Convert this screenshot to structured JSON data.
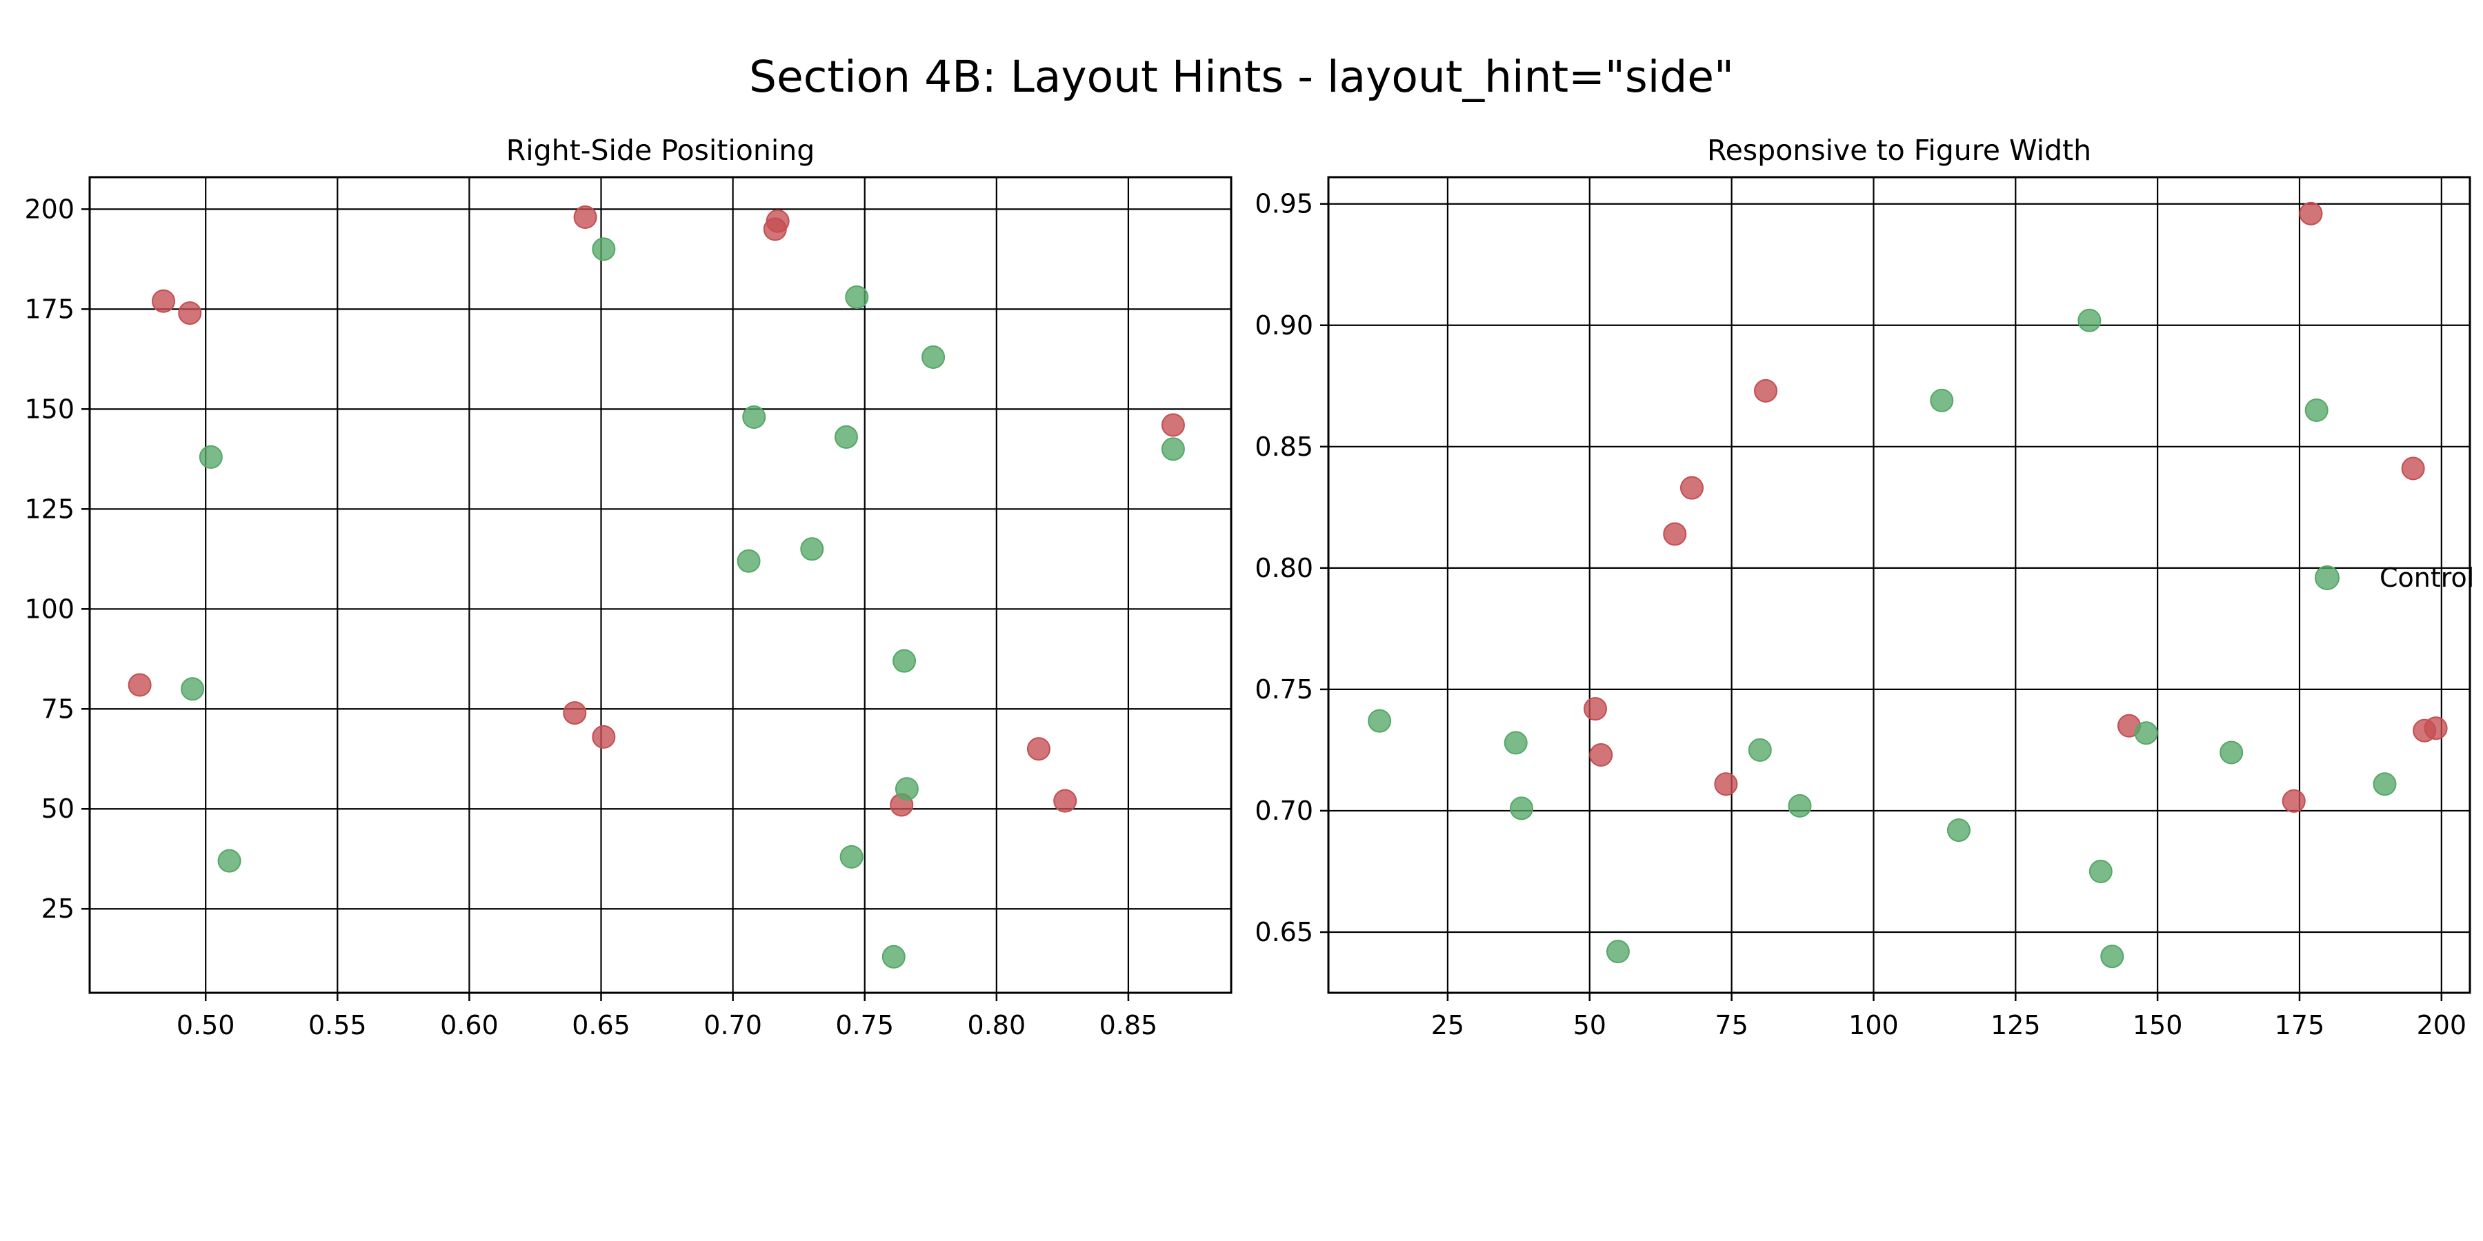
{
  "figure_title": "Section 4B: Layout Hints - layout_hint=\"side\"",
  "colors": {
    "red": "#c44e52",
    "green": "#55a868",
    "grid": "#000000",
    "axis": "#000000"
  },
  "chart_data": [
    {
      "type": "scatter",
      "title": "Right-Side Positioning",
      "xlabel": "",
      "ylabel": "",
      "xlim": [
        0.456,
        0.889
      ],
      "ylim": [
        4,
        208
      ],
      "xticks": [
        0.5,
        0.55,
        0.6,
        0.65,
        0.7,
        0.75,
        0.8,
        0.85
      ],
      "xtick_labels": [
        "0.50",
        "0.55",
        "0.60",
        "0.65",
        "0.70",
        "0.75",
        "0.80",
        "0.85"
      ],
      "yticks": [
        25,
        50,
        75,
        100,
        125,
        150,
        175,
        200
      ],
      "ytick_labels": [
        "25",
        "50",
        "75",
        "100",
        "125",
        "150",
        "175",
        "200"
      ],
      "grid": true,
      "legend": null,
      "series": [
        {
          "color": "red",
          "points": [
            [
              0.475,
              81
            ],
            [
              0.484,
              177
            ],
            [
              0.494,
              174
            ],
            [
              0.644,
              198
            ],
            [
              0.64,
              74
            ],
            [
              0.651,
              68
            ],
            [
              0.716,
              195
            ],
            [
              0.717,
              197
            ],
            [
              0.764,
              51
            ],
            [
              0.816,
              65
            ],
            [
              0.826,
              52
            ],
            [
              0.867,
              146
            ]
          ]
        },
        {
          "color": "green",
          "points": [
            [
              0.495,
              80
            ],
            [
              0.502,
              138
            ],
            [
              0.509,
              37
            ],
            [
              0.651,
              190
            ],
            [
              0.706,
              112
            ],
            [
              0.708,
              148
            ],
            [
              0.73,
              115
            ],
            [
              0.743,
              143
            ],
            [
              0.745,
              38
            ],
            [
              0.747,
              178
            ],
            [
              0.761,
              13
            ],
            [
              0.765,
              87
            ],
            [
              0.766,
              55
            ],
            [
              0.776,
              163
            ],
            [
              0.867,
              140
            ]
          ]
        }
      ]
    },
    {
      "type": "scatter",
      "title": "Responsive to Figure Width",
      "xlabel": "",
      "ylabel": "",
      "xlim": [
        4,
        205
      ],
      "ylim": [
        0.625,
        0.961
      ],
      "xticks": [
        25,
        50,
        75,
        100,
        125,
        150,
        175,
        200
      ],
      "xtick_labels": [
        "25",
        "50",
        "75",
        "100",
        "125",
        "150",
        "175",
        "200"
      ],
      "yticks": [
        0.65,
        0.7,
        0.75,
        0.8,
        0.85,
        0.9,
        0.95
      ],
      "ytick_labels": [
        "0.65",
        "0.70",
        "0.75",
        "0.80",
        "0.85",
        "0.90",
        "0.95"
      ],
      "grid": true,
      "legend": {
        "placement": "right",
        "entries": [
          {
            "label": "Control",
            "color": "green"
          }
        ]
      },
      "series": [
        {
          "color": "red",
          "points": [
            [
              51,
              0.742
            ],
            [
              52,
              0.723
            ],
            [
              65,
              0.814
            ],
            [
              68,
              0.833
            ],
            [
              74,
              0.711
            ],
            [
              81,
              0.873
            ],
            [
              145,
              0.735
            ],
            [
              174,
              0.704
            ],
            [
              177,
              0.946
            ],
            [
              195,
              0.841
            ],
            [
              197,
              0.733
            ],
            [
              199,
              0.734
            ]
          ]
        },
        {
          "color": "green",
          "points": [
            [
              13,
              0.737
            ],
            [
              37,
              0.728
            ],
            [
              38,
              0.701
            ],
            [
              55,
              0.642
            ],
            [
              80,
              0.725
            ],
            [
              87,
              0.702
            ],
            [
              112,
              0.869
            ],
            [
              115,
              0.692
            ],
            [
              138,
              0.902
            ],
            [
              140,
              0.675
            ],
            [
              142,
              0.64
            ],
            [
              148,
              0.732
            ],
            [
              163,
              0.724
            ],
            [
              178,
              0.865
            ],
            [
              190,
              0.711
            ]
          ]
        }
      ]
    }
  ]
}
